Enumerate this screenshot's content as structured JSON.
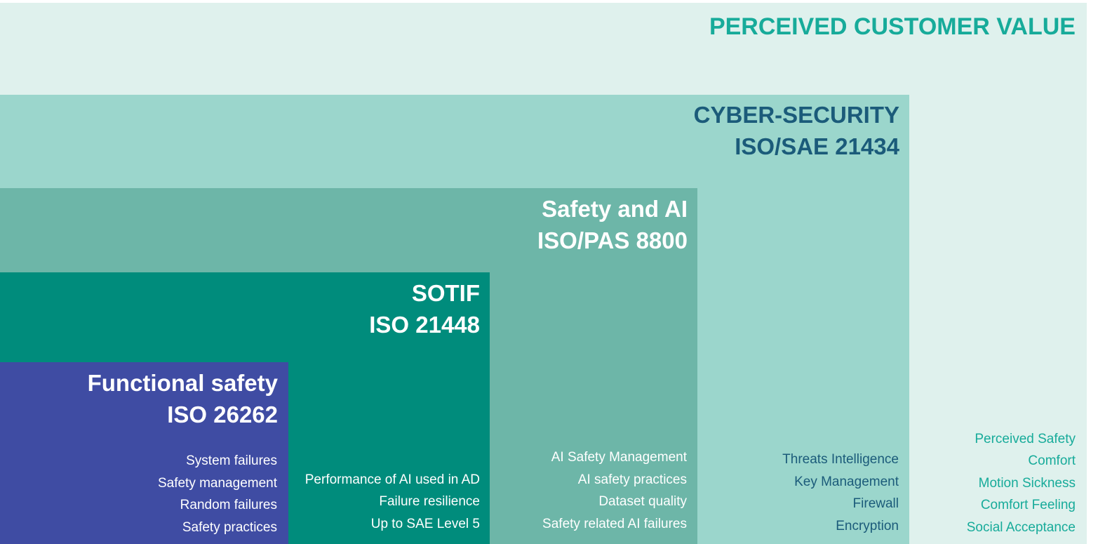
{
  "layers": {
    "perceived_customer_value": {
      "title": "PERCEIVED CUSTOMER VALUE",
      "items": [
        "Perceived Safety",
        "Comfort",
        "Motion Sickness",
        "Comfort Feeling",
        "Social Acceptance"
      ],
      "bg_color": "#dff1ed",
      "text_color": "#17ab9a"
    },
    "cyber_security": {
      "title_line1": "CYBER-SECURITY",
      "title_line2": "ISO/SAE 21434",
      "items": [
        "Threats Intelligence",
        "Key Management",
        "Firewall",
        "Encryption"
      ],
      "bg_color": "#9bd6cc",
      "text_color": "#1b5b7a"
    },
    "safety_and_ai": {
      "title_line1": "Safety and AI",
      "title_line2": "ISO/PAS 8800",
      "items": [
        "AI Safety Management",
        "AI safety practices",
        "Dataset quality",
        "Safety related AI failures"
      ],
      "bg_color": "#6db6a8",
      "text_color": "#ffffff"
    },
    "sotif": {
      "title_line1": "SOTIF",
      "title_line2": "ISO 21448",
      "items": [
        "Performance of AI used in AD",
        "Failure resilience",
        "Up to SAE Level 5"
      ],
      "bg_color": "#008c7c",
      "text_color": "#ffffff"
    },
    "functional_safety": {
      "title_line1": "Functional safety",
      "title_line2": "ISO 26262",
      "items": [
        "System failures",
        "Safety management",
        "Random failures",
        "Safety practices"
      ],
      "bg_color": "#3f4ca3",
      "text_color": "#ffffff"
    }
  }
}
